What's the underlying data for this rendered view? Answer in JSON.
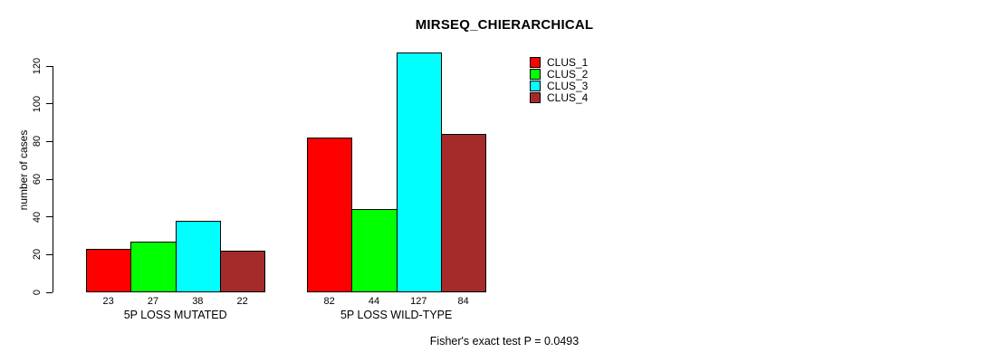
{
  "chart_data": {
    "type": "bar",
    "title": "MIRSEQ_CHIERARCHICAL",
    "ylabel": "number of cases",
    "xlabel": "",
    "categories": [
      "5P LOSS MUTATED",
      "5P LOSS WILD-TYPE"
    ],
    "series": [
      {
        "name": "CLUS_1",
        "color": "#ff0000",
        "values": [
          23,
          82
        ]
      },
      {
        "name": "CLUS_2",
        "color": "#00ff00",
        "values": [
          27,
          44
        ]
      },
      {
        "name": "CLUS_3",
        "color": "#00ffff",
        "values": [
          38,
          127
        ]
      },
      {
        "name": "CLUS_4",
        "color": "#a52a2a",
        "values": [
          22,
          84
        ]
      }
    ],
    "yticks": [
      0,
      20,
      40,
      60,
      80,
      100,
      120
    ],
    "ylim": [
      0,
      127
    ],
    "grid": false,
    "bar_value_labels_shown": true,
    "legend": {
      "position": "top-right"
    },
    "annotation": "Fisher's exact test P = 0.0493"
  }
}
